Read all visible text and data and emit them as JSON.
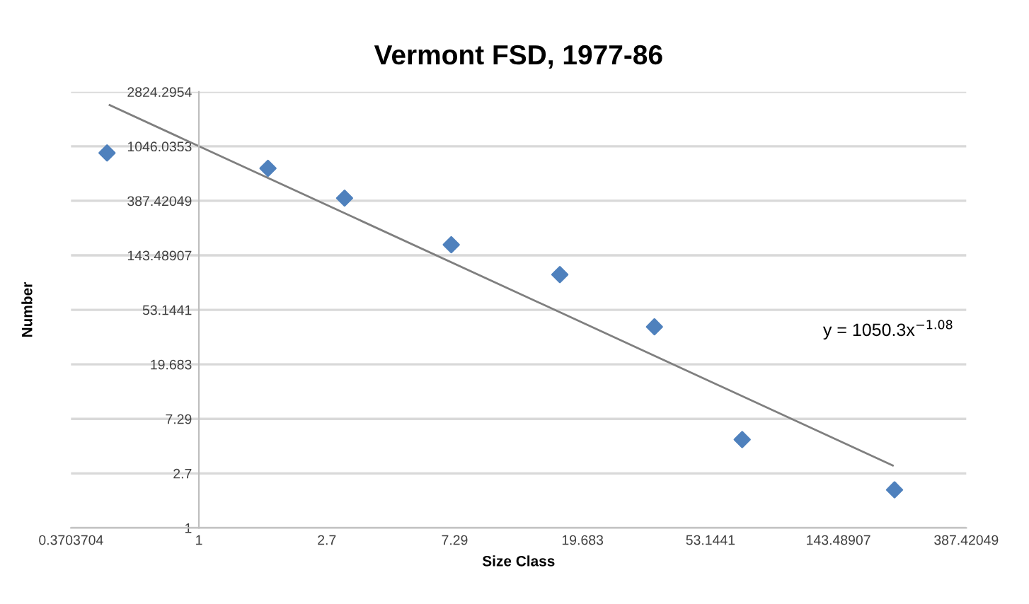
{
  "chart_data": {
    "type": "scatter",
    "title": "Vermont FSD, 1977-86",
    "xlabel": "Size Class",
    "ylabel": "Number",
    "log": "xy",
    "grid": "y",
    "marker": "diamond",
    "xlim": [
      0.3703704,
      387.42049
    ],
    "xticks": [
      0.3703704,
      1,
      2.7,
      7.29,
      19.683,
      53.1441,
      143.48907,
      387.42049
    ],
    "ylim": [
      1,
      2824.2954
    ],
    "yticks": [
      1,
      2.7,
      7.29,
      19.683,
      53.1441,
      143.48907,
      387.42049,
      1046.0353,
      2824.2954
    ],
    "series": [
      {
        "color": "#4f81bd",
        "x": [
          0.49,
          1.71,
          3.1,
          7.1,
          16.5,
          34.4,
          68,
          222
        ],
        "values": [
          926,
          700,
          407,
          174,
          101,
          39,
          5.0,
          2.0
        ]
      },
      {
        "type": "line",
        "color": "#7f7f7f",
        "marker": "none",
        "x": [
          0.5,
          219
        ],
        "values": [
          2218,
          3.12
        ]
      }
    ],
    "annotations": [
      "y = 1050.3x$^{−1.08}$"
    ]
  }
}
